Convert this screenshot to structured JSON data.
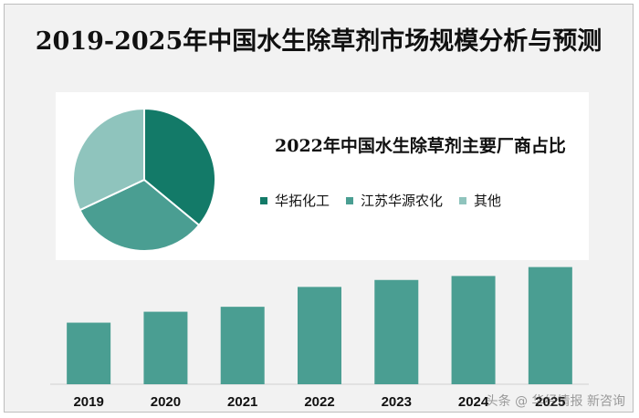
{
  "title": "2019-2025年中国水生除草剂市场规模分析与预测",
  "chart_data": [
    {
      "type": "bar",
      "categories": [
        "2019",
        "2020",
        "2021",
        "2022",
        "2023",
        "2024",
        "2025"
      ],
      "values": [
        62,
        73,
        78,
        98,
        105,
        109,
        118
      ],
      "ylim": [
        0,
        125
      ],
      "color": "#4a9e92",
      "grid": false
    },
    {
      "type": "pie",
      "title": "2022年中国水生除草剂主要厂商占比",
      "labels": [
        "华拓化工",
        "江苏华源农化",
        "其他"
      ],
      "values": [
        36,
        32,
        32
      ],
      "colors": [
        "#137a68",
        "#4a9e92",
        "#8fc4bd"
      ],
      "legend": "right-below-title"
    }
  ],
  "watermark": "头条 @ 华经情报 新咨询"
}
